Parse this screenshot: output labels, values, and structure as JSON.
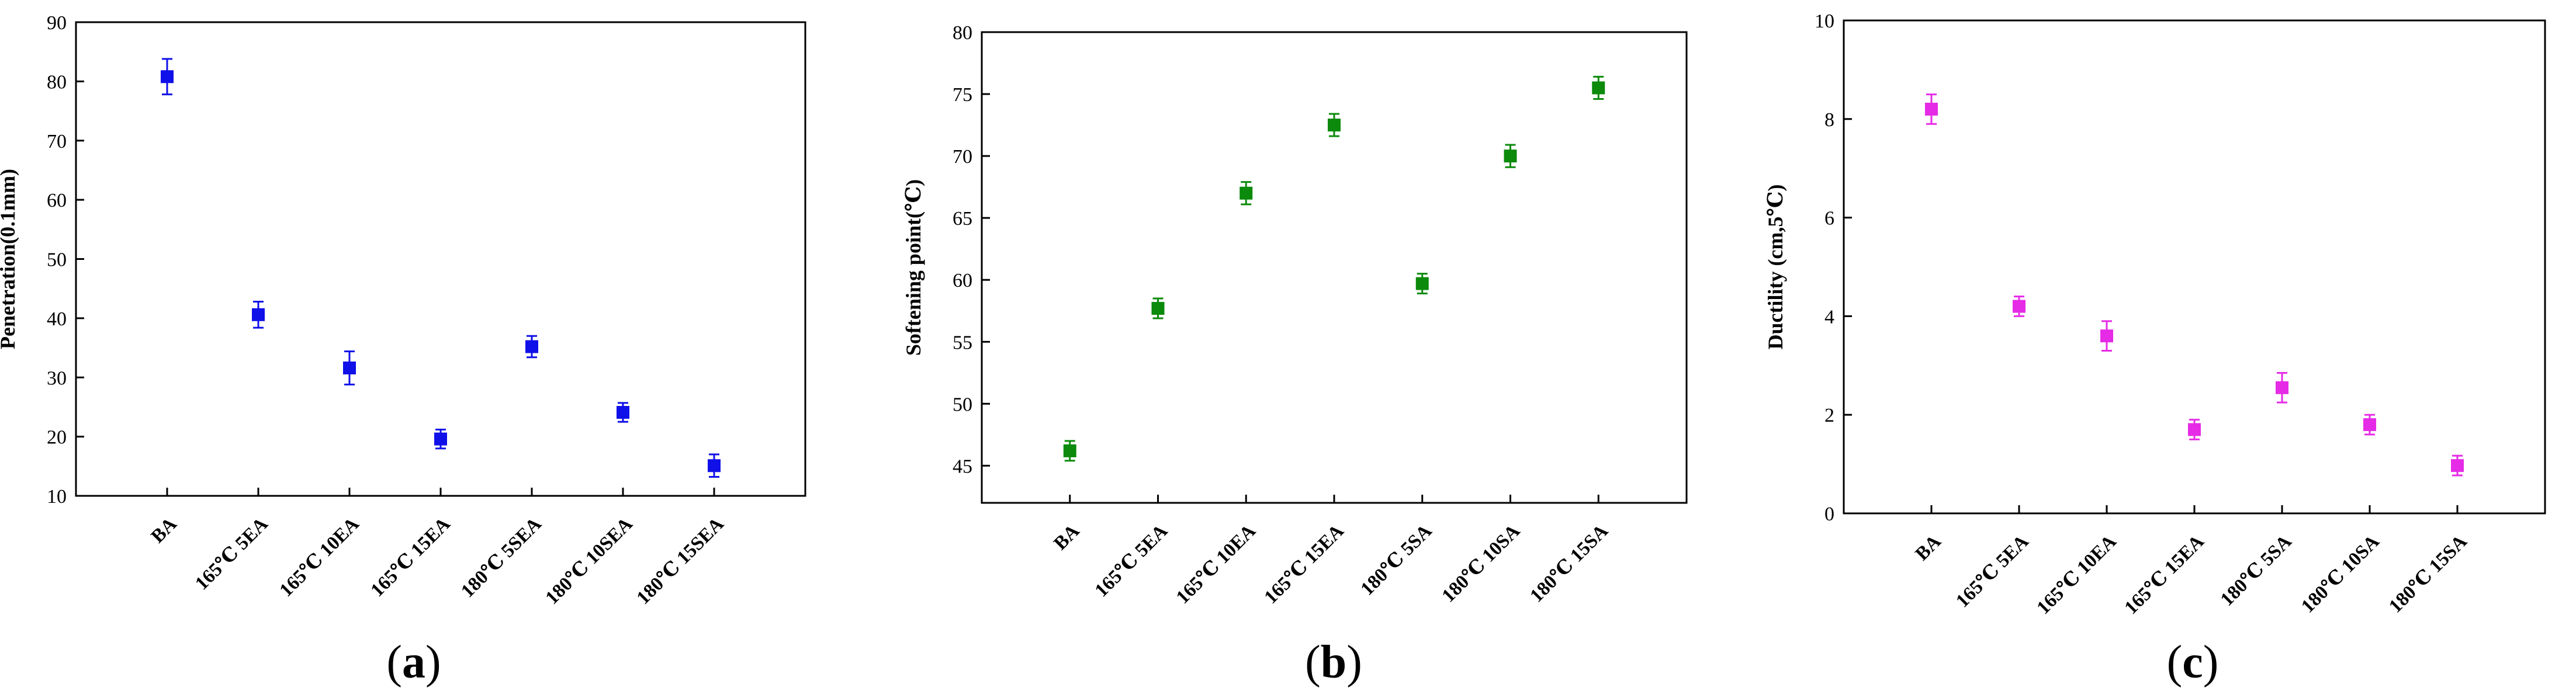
{
  "chart_data": [
    {
      "type": "scatter",
      "panel": "(a)",
      "panel_open": "(",
      "panel_letter": "a",
      "panel_close": ")",
      "ylabel": "Penetration(0.1mm)",
      "xlabel": "",
      "ylim": [
        10,
        90
      ],
      "yticks": [
        "10",
        "20",
        "30",
        "40",
        "50",
        "60",
        "70",
        "80",
        "90"
      ],
      "categories": [
        "BA",
        "165℃ 5EA",
        "165℃ 10EA",
        "165℃ 15EA",
        "180℃ 5SEA",
        "180℃ 10SEA",
        "180℃ 15SEA"
      ],
      "values": [
        80.8,
        40.6,
        31.6,
        19.6,
        35.2,
        24.1,
        15.1
      ],
      "errors": [
        3.0,
        2.2,
        2.8,
        1.6,
        1.8,
        1.6,
        1.9
      ],
      "color": "#1010e8"
    },
    {
      "type": "scatter",
      "panel": "(b)",
      "panel_open": "(",
      "panel_letter": "b",
      "panel_close": ")",
      "ylabel": "Softening point(℃)",
      "xlabel": "",
      "ylim": [
        42,
        80
      ],
      "yticks": [
        "45",
        "50",
        "55",
        "60",
        "65",
        "70",
        "75",
        "80"
      ],
      "categories": [
        "BA",
        "165℃ 5EA",
        "165℃ 10EA",
        "165℃ 15EA",
        "180℃ 5SA",
        "180℃ 10SA",
        "180℃ 15SA"
      ],
      "values": [
        46.2,
        57.7,
        67.0,
        72.5,
        59.7,
        70.0,
        75.5
      ],
      "errors": [
        0.8,
        0.8,
        0.9,
        0.9,
        0.8,
        0.9,
        0.9
      ],
      "color": "#0b8a0b"
    },
    {
      "type": "scatter",
      "panel": "(c)",
      "panel_open": "(",
      "panel_letter": "c",
      "panel_close": ")",
      "ylabel": "Ductility (cm,5℃)",
      "xlabel": "",
      "ylim": [
        0,
        10
      ],
      "yticks": [
        "0",
        "2",
        "4",
        "6",
        "8",
        "10"
      ],
      "categories": [
        "BA",
        "165℃ 5EA",
        "165℃ 10EA",
        "165℃ 15EA",
        "180℃ 5SA",
        "180℃ 10SA",
        "180℃ 15SA"
      ],
      "values": [
        8.2,
        4.2,
        3.6,
        1.7,
        2.55,
        1.8,
        0.97
      ],
      "errors": [
        0.3,
        0.2,
        0.3,
        0.2,
        0.3,
        0.2,
        0.2
      ],
      "color": "#e62be6"
    }
  ]
}
